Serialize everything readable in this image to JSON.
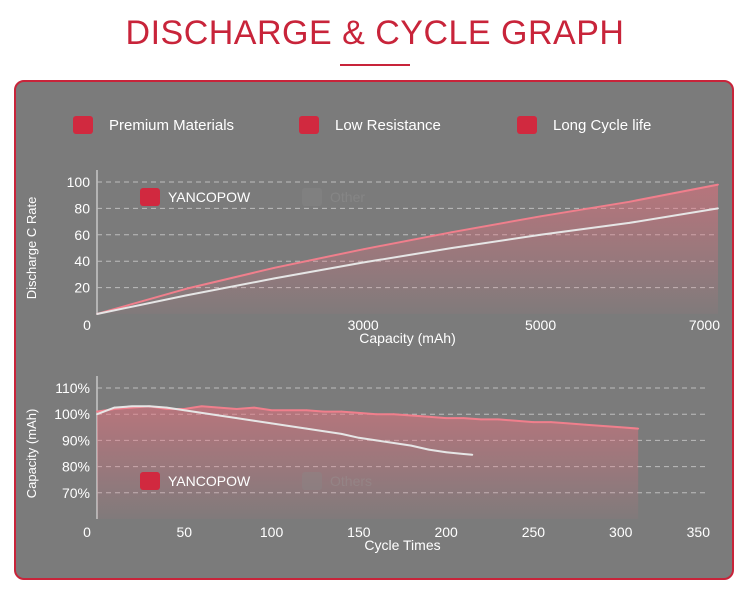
{
  "page": {
    "title": "DISCHARGE & CYCLE GRAPH",
    "accent_color": "#c8243a",
    "panel_color": "#7b7b7b"
  },
  "features": [
    {
      "label": "Premium Materials",
      "color": "#d1293f"
    },
    {
      "label": "Low Resistance",
      "color": "#d1293f"
    },
    {
      "label": "Long Cycle life",
      "color": "#d1293f"
    }
  ],
  "chart_data": [
    {
      "type": "line",
      "xlabel": "Capacity (mAh)",
      "ylabel": "Discharge C Rate",
      "xlim": [
        0,
        7000
      ],
      "ylim": [
        0,
        100
      ],
      "x_ticks": [
        "0",
        "3000",
        "5000",
        "7000"
      ],
      "x_tick_values": [
        0,
        3000,
        5000,
        7000
      ],
      "y_ticks": [
        "100",
        "80",
        "60",
        "40",
        "20"
      ],
      "y_tick_values": [
        100,
        80,
        60,
        40,
        20
      ],
      "grid": true,
      "legend": [
        {
          "label": "YANCOPOW",
          "color": "#d1293f"
        },
        {
          "label": "Other",
          "color": "#8a8a8a"
        }
      ],
      "series": [
        {
          "name": "YANCOPOW",
          "color": "#f07f8c",
          "x": [
            0,
            1000,
            2000,
            3000,
            4000,
            5000,
            6000,
            7000
          ],
          "y": [
            0,
            19,
            35,
            49,
            62,
            74,
            85,
            98
          ]
        },
        {
          "name": "Other",
          "color": "#e6e6e6",
          "x": [
            0,
            1000,
            2000,
            3000,
            4000,
            5000,
            6000,
            7000
          ],
          "y": [
            0,
            14,
            27,
            39,
            50,
            60,
            69,
            80
          ]
        }
      ]
    },
    {
      "type": "line",
      "xlabel": "Cycle Times",
      "ylabel": "Capacity (mAh)",
      "xlim": [
        0,
        350
      ],
      "ylim": [
        60,
        110
      ],
      "x_ticks": [
        "0",
        "50",
        "100",
        "150",
        "200",
        "250",
        "300",
        "350"
      ],
      "x_tick_values": [
        0,
        50,
        100,
        150,
        200,
        250,
        300,
        350
      ],
      "y_ticks": [
        "110%",
        "100%",
        "90%",
        "80%",
        "70%"
      ],
      "y_tick_values": [
        110,
        100,
        90,
        80,
        70
      ],
      "grid": true,
      "legend": [
        {
          "label": "YANCOPOW",
          "color": "#d1293f"
        },
        {
          "label": "Others",
          "color": "#8a8a8a"
        }
      ],
      "series": [
        {
          "name": "YANCOPOW",
          "color": "#f07f8c",
          "x": [
            0,
            10,
            20,
            30,
            40,
            50,
            60,
            70,
            80,
            90,
            100,
            110,
            120,
            130,
            140,
            150,
            160,
            170,
            180,
            190,
            200,
            210,
            220,
            230,
            240,
            250,
            260,
            270,
            280,
            290,
            300,
            310
          ],
          "y": [
            101,
            102,
            102.5,
            103,
            102,
            102,
            103,
            102.5,
            102,
            102.5,
            101.5,
            101.5,
            101.5,
            101,
            101,
            100.5,
            100,
            100,
            99.5,
            99,
            98.5,
            98.5,
            98,
            98,
            97.5,
            97,
            97,
            96.5,
            96,
            95.5,
            95,
            94.5
          ]
        },
        {
          "name": "Others",
          "color": "#e6e6e6",
          "x": [
            0,
            10,
            20,
            30,
            40,
            50,
            60,
            70,
            80,
            90,
            100,
            110,
            120,
            130,
            140,
            150,
            160,
            170,
            180,
            190,
            200,
            210,
            215
          ],
          "y": [
            100,
            102.5,
            103,
            103,
            102.5,
            101.5,
            100.5,
            99.5,
            98.5,
            97.5,
            96.5,
            95.5,
            94.5,
            93.5,
            92.5,
            91,
            90,
            89,
            88,
            86.5,
            85.5,
            84.8,
            84.5
          ]
        }
      ]
    }
  ]
}
